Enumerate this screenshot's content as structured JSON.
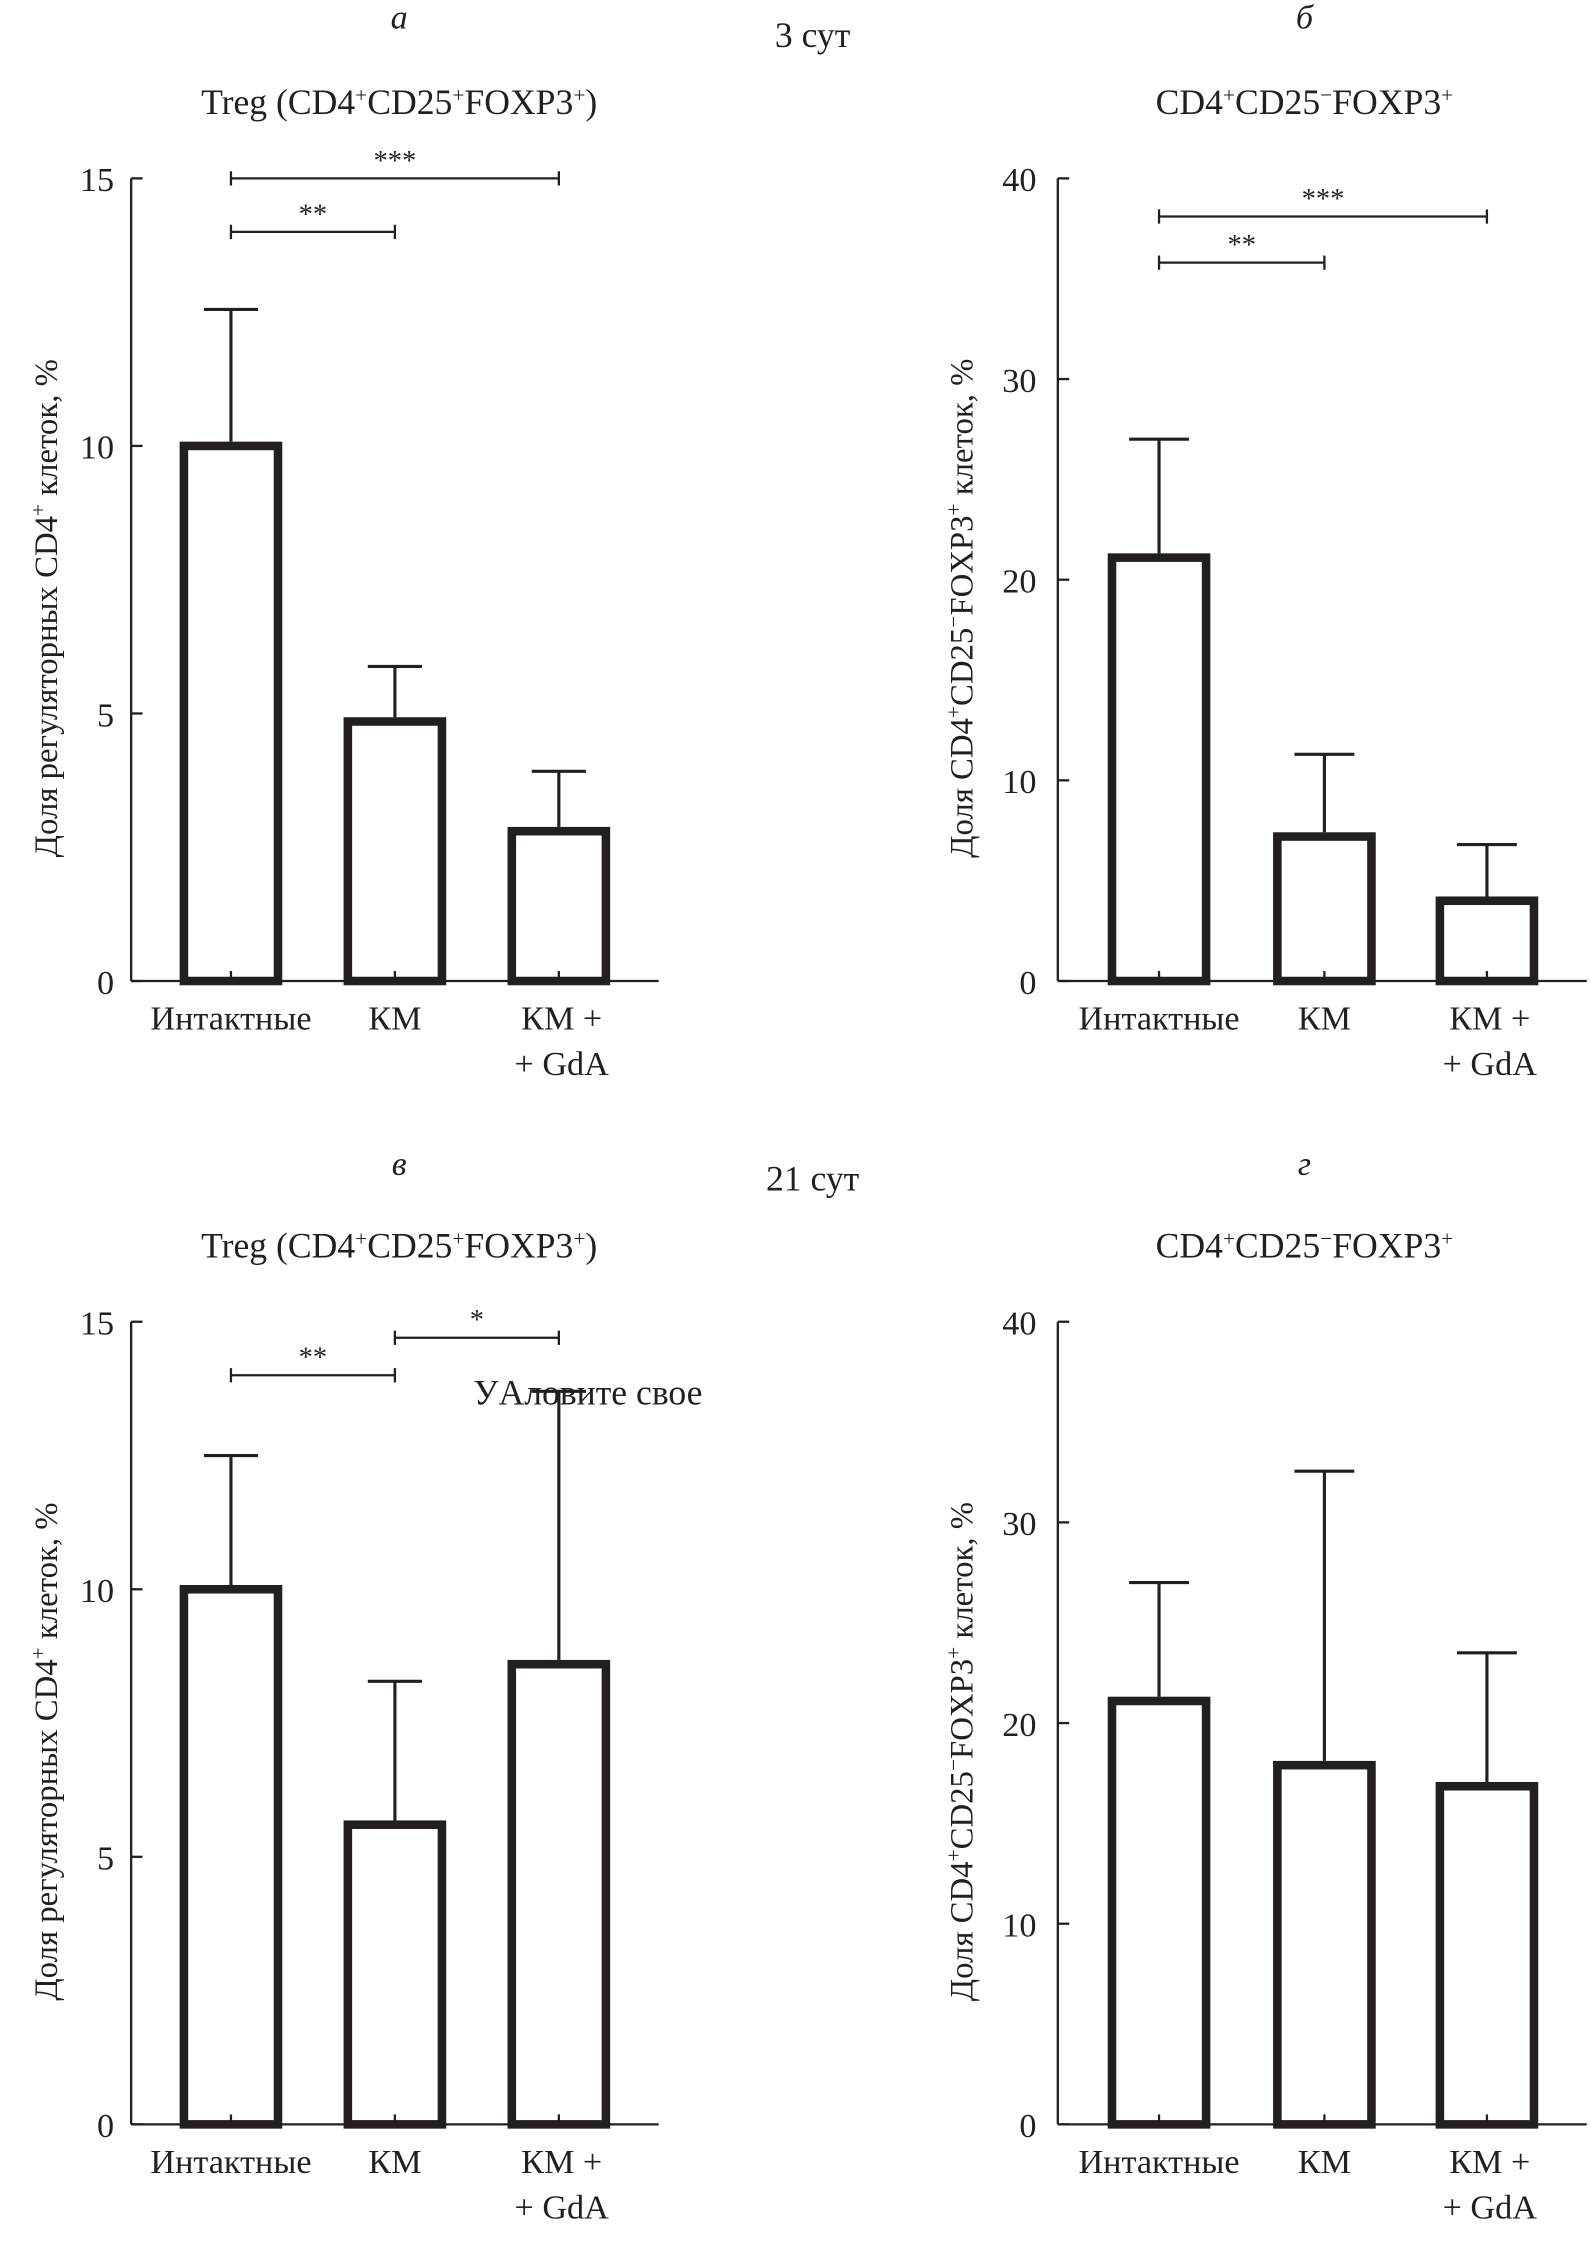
{
  "figure": {
    "day_labels": [
      "3 сут",
      "21 сут"
    ],
    "overlay_text": "УAловите свое"
  },
  "chart_data": [
    {
      "type": "bar",
      "panel": "а",
      "day": "3 сут",
      "title": "Treg (CD4⁺CD25⁺FOXP3⁺)",
      "title_parts": [
        [
          "Treg (CD4",
          ""
        ],
        [
          "+",
          "sup"
        ],
        [
          "CD25",
          ""
        ],
        [
          "+",
          "sup"
        ],
        [
          "FOXP3",
          ""
        ],
        [
          "+",
          "sup"
        ],
        [
          ")",
          ""
        ]
      ],
      "ylabel": "Доля регуляторных CD4⁺ клеток, %",
      "ylabel_parts": [
        [
          "Доля регуляторных CD4",
          ""
        ],
        [
          "+",
          "sup"
        ],
        [
          " клеток, %",
          ""
        ]
      ],
      "xlabel": "",
      "categories": [
        "Интактные",
        "КМ",
        "КМ + + GdA"
      ],
      "category_lines": [
        [
          "Интактные"
        ],
        [
          "КМ"
        ],
        [
          "КМ +",
          "+ GdA"
        ]
      ],
      "values": [
        10.0,
        4.85,
        2.8
      ],
      "error_upper": [
        12.55,
        5.88,
        3.92
      ],
      "ylim": [
        0,
        15
      ],
      "yticks": [
        0,
        5,
        10,
        15
      ],
      "grid": false,
      "significance": [
        {
          "from": 0,
          "to": 1,
          "label": "**",
          "level": 14.0
        },
        {
          "from": 0,
          "to": 2,
          "label": "***",
          "level": 15.0
        }
      ]
    },
    {
      "type": "bar",
      "panel": "б",
      "day": "3 сут",
      "title": "CD4⁺CD25⁻FOXP3⁺",
      "title_parts": [
        [
          "CD4",
          ""
        ],
        [
          "+",
          "sup"
        ],
        [
          "CD25",
          ""
        ],
        [
          "−",
          "sup"
        ],
        [
          "FOXP3",
          ""
        ],
        [
          "+",
          "sup"
        ]
      ],
      "ylabel": "Доля CD4⁺CD25⁻FOXP3⁺ клеток, %",
      "ylabel_parts": [
        [
          "Доля CD4",
          ""
        ],
        [
          "+",
          "sup"
        ],
        [
          "CD25",
          ""
        ],
        [
          "−",
          "sup"
        ],
        [
          "FOXP3",
          ""
        ],
        [
          "+",
          "sup"
        ],
        [
          " клеток, %",
          ""
        ]
      ],
      "xlabel": "",
      "categories": [
        "Интактные",
        "КМ",
        "КМ + + GdA"
      ],
      "category_lines": [
        [
          "Интактные"
        ],
        [
          "КМ"
        ],
        [
          "КМ +",
          "+ GdA"
        ]
      ],
      "values": [
        21.1,
        7.2,
        4.0
      ],
      "error_upper": [
        27.0,
        11.3,
        6.8
      ],
      "ylim": [
        0,
        40
      ],
      "yticks": [
        0,
        10,
        20,
        30,
        40
      ],
      "grid": false,
      "significance": [
        {
          "from": 0,
          "to": 1,
          "label": "**",
          "level": 35.8
        },
        {
          "from": 0,
          "to": 2,
          "label": "***",
          "level": 38.1
        }
      ]
    },
    {
      "type": "bar",
      "panel": "в",
      "day": "21 сут",
      "title": "Treg (CD4⁺CD25⁺FOXP3⁺)",
      "title_parts": [
        [
          "Treg (CD4",
          ""
        ],
        [
          "+",
          "sup"
        ],
        [
          "CD25",
          ""
        ],
        [
          "+",
          "sup"
        ],
        [
          "FOXP3",
          ""
        ],
        [
          "+",
          "sup"
        ],
        [
          ")",
          ""
        ]
      ],
      "ylabel": "Доля регуляторных CD4⁺ клеток, %",
      "ylabel_parts": [
        [
          "Доля регуляторных CD4",
          ""
        ],
        [
          "+",
          "sup"
        ],
        [
          " клеток, %",
          ""
        ]
      ],
      "xlabel": "",
      "categories": [
        "Интактные",
        "КМ",
        "КМ + + GdA"
      ],
      "category_lines": [
        [
          "Интактные"
        ],
        [
          "КМ"
        ],
        [
          "КМ +",
          "+ GdA"
        ]
      ],
      "values": [
        10.0,
        5.6,
        8.6
      ],
      "error_upper": [
        12.5,
        8.28,
        13.7
      ],
      "ylim": [
        0,
        15
      ],
      "yticks": [
        0,
        5,
        10,
        15
      ],
      "grid": false,
      "significance": [
        {
          "from": 0,
          "to": 1,
          "label": "**",
          "level": 14.0
        },
        {
          "from": 1,
          "to": 2,
          "label": "*",
          "level": 14.7
        }
      ]
    },
    {
      "type": "bar",
      "panel": "г",
      "day": "21 сут",
      "title": "CD4⁺CD25⁻FOXP3⁺",
      "title_parts": [
        [
          "CD4",
          ""
        ],
        [
          "+",
          "sup"
        ],
        [
          "CD25",
          ""
        ],
        [
          "−",
          "sup"
        ],
        [
          "FOXP3",
          ""
        ],
        [
          "+",
          "sup"
        ]
      ],
      "ylabel": "Доля CD4⁺CD25⁻FOXP3⁺ клеток, %",
      "ylabel_parts": [
        [
          "Доля CD4",
          ""
        ],
        [
          "+",
          "sup"
        ],
        [
          "CD25",
          ""
        ],
        [
          "−",
          "sup"
        ],
        [
          "FOXP3",
          ""
        ],
        [
          "+",
          "sup"
        ],
        [
          " клеток, %",
          ""
        ]
      ],
      "xlabel": "",
      "categories": [
        "Интактные",
        "КМ",
        "КМ + + GdA"
      ],
      "category_lines": [
        [
          "Интактные"
        ],
        [
          "КМ"
        ],
        [
          "КМ +",
          "+ GdA"
        ]
      ],
      "values": [
        21.1,
        17.9,
        16.85
      ],
      "error_upper": [
        27.0,
        32.55,
        23.5
      ],
      "ylim": [
        0,
        40
      ],
      "yticks": [
        0,
        10,
        20,
        30,
        40
      ],
      "grid": false,
      "significance": []
    }
  ]
}
